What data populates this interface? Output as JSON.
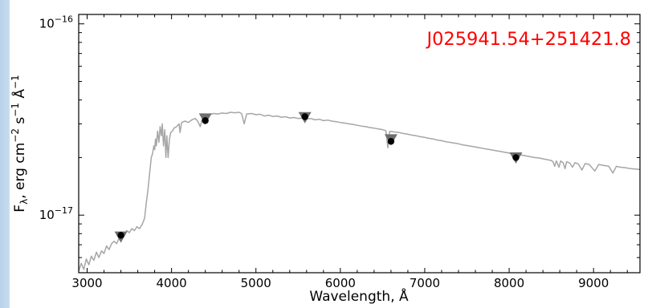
{
  "chart_data": {
    "type": "line",
    "annotation": "J025941.54+251421.8",
    "xlabel": "Wavelength, Å",
    "ylabel_parts": {
      "main": "F",
      "subscript": "λ",
      "units": ", erg cm",
      "exp1": "−2",
      "s": " s",
      "exp2": "−1",
      "angstrom": " Å",
      "exp3": "−1"
    },
    "xlim": [
      2900,
      9550
    ],
    "ylim": [
      5e-18,
      1.12e-16
    ],
    "yscale": "log",
    "x_ticks": [
      3000,
      4000,
      5000,
      6000,
      7000,
      8000,
      9000
    ],
    "x_tick_labels": [
      "3000",
      "4000",
      "5000",
      "6000",
      "7000",
      "8000",
      "9000"
    ],
    "y_major_ticks": [
      {
        "value": 1e-16,
        "mantissa": "10",
        "exponent": "−16"
      },
      {
        "value": 1e-17,
        "mantissa": "10",
        "exponent": "−17"
      }
    ],
    "grid": false,
    "colors": {
      "spectrum": "#a6a6a6",
      "photometry_point": "#000000",
      "model_triangle": "#6e6e6e",
      "annotation": "#ff0000"
    },
    "spectrum": [
      [
        2900,
        5.1e-18
      ],
      [
        2930,
        5.6e-18
      ],
      [
        2960,
        5.2e-18
      ],
      [
        2990,
        5.9e-18
      ],
      [
        3020,
        5.5e-18
      ],
      [
        3050,
        6.1e-18
      ],
      [
        3080,
        5.8e-18
      ],
      [
        3110,
        6.4e-18
      ],
      [
        3140,
        6e-18
      ],
      [
        3170,
        6.5e-18
      ],
      [
        3200,
        6.3e-18
      ],
      [
        3230,
        6.9e-18
      ],
      [
        3260,
        6.6e-18
      ],
      [
        3290,
        7.1e-18
      ],
      [
        3320,
        7.3e-18
      ],
      [
        3350,
        7.1e-18
      ],
      [
        3380,
        7.6e-18
      ],
      [
        3410,
        7.8e-18
      ],
      [
        3440,
        8e-18
      ],
      [
        3470,
        8.3e-18
      ],
      [
        3500,
        8.1e-18
      ],
      [
        3530,
        8.5e-18
      ],
      [
        3560,
        8.3e-18
      ],
      [
        3590,
        8.7e-18
      ],
      [
        3620,
        8.5e-18
      ],
      [
        3650,
        8.9e-18
      ],
      [
        3680,
        9.6e-18
      ],
      [
        3700,
        1.15e-17
      ],
      [
        3720,
        1.35e-17
      ],
      [
        3740,
        1.65e-17
      ],
      [
        3760,
        2e-17
      ],
      [
        3775,
        2.1e-17
      ],
      [
        3790,
        2.3e-17
      ],
      [
        3800,
        2.2e-17
      ],
      [
        3810,
        2.5e-17
      ],
      [
        3820,
        2.3e-17
      ],
      [
        3835,
        2.75e-17
      ],
      [
        3850,
        2.4e-17
      ],
      [
        3865,
        2.9e-17
      ],
      [
        3880,
        2.6e-17
      ],
      [
        3890,
        3e-17
      ],
      [
        3905,
        2.3e-17
      ],
      [
        3920,
        2.8e-17
      ],
      [
        3933,
        2e-17
      ],
      [
        3945,
        2.6e-17
      ],
      [
        3960,
        2e-17
      ],
      [
        3975,
        2.5e-17
      ],
      [
        3990,
        2.7e-17
      ],
      [
        4010,
        2.75e-17
      ],
      [
        4030,
        2.85e-17
      ],
      [
        4060,
        2.9e-17
      ],
      [
        4090,
        3e-17
      ],
      [
        4101,
        2.7e-17
      ],
      [
        4120,
        3.05e-17
      ],
      [
        4160,
        3.1e-17
      ],
      [
        4200,
        3.05e-17
      ],
      [
        4240,
        3.15e-17
      ],
      [
        4280,
        3.2e-17
      ],
      [
        4310,
        3.1e-17
      ],
      [
        4340,
        2.9e-17
      ],
      [
        4370,
        3.25e-17
      ],
      [
        4410,
        3.3e-17
      ],
      [
        4450,
        3.35e-17
      ],
      [
        4500,
        3.4e-17
      ],
      [
        4550,
        3.38e-17
      ],
      [
        4600,
        3.42e-17
      ],
      [
        4650,
        3.4e-17
      ],
      [
        4700,
        3.45e-17
      ],
      [
        4750,
        3.43e-17
      ],
      [
        4800,
        3.45e-17
      ],
      [
        4830,
        3.4e-17
      ],
      [
        4861,
        3e-17
      ],
      [
        4890,
        3.38e-17
      ],
      [
        4950,
        3.4e-17
      ],
      [
        5000,
        3.35e-17
      ],
      [
        5050,
        3.37e-17
      ],
      [
        5100,
        3.3e-17
      ],
      [
        5150,
        3.33e-17
      ],
      [
        5200,
        3.28e-17
      ],
      [
        5250,
        3.3e-17
      ],
      [
        5300,
        3.25e-17
      ],
      [
        5350,
        3.27e-17
      ],
      [
        5400,
        3.22e-17
      ],
      [
        5450,
        3.24e-17
      ],
      [
        5500,
        3.2e-17
      ],
      [
        5550,
        3.22e-17
      ],
      [
        5600,
        3.18e-17
      ],
      [
        5650,
        3.2e-17
      ],
      [
        5700,
        3.15e-17
      ],
      [
        5750,
        3.17e-17
      ],
      [
        5800,
        3.12e-17
      ],
      [
        5850,
        3.14e-17
      ],
      [
        5900,
        3.1e-17
      ],
      [
        5950,
        3.08e-17
      ],
      [
        6000,
        3.05e-17
      ],
      [
        6050,
        3.03e-17
      ],
      [
        6100,
        3e-17
      ],
      [
        6150,
        2.98e-17
      ],
      [
        6200,
        2.95e-17
      ],
      [
        6250,
        2.92e-17
      ],
      [
        6300,
        2.9e-17
      ],
      [
        6350,
        2.87e-17
      ],
      [
        6400,
        2.85e-17
      ],
      [
        6450,
        2.82e-17
      ],
      [
        6500,
        2.8e-17
      ],
      [
        6540,
        2.76e-17
      ],
      [
        6563,
        2.25e-17
      ],
      [
        6585,
        2.74e-17
      ],
      [
        6650,
        2.72e-17
      ],
      [
        6700,
        2.7e-17
      ],
      [
        6750,
        2.67e-17
      ],
      [
        6800,
        2.65e-17
      ],
      [
        6850,
        2.62e-17
      ],
      [
        6900,
        2.6e-17
      ],
      [
        6950,
        2.57e-17
      ],
      [
        7000,
        2.55e-17
      ],
      [
        7050,
        2.52e-17
      ],
      [
        7100,
        2.5e-17
      ],
      [
        7150,
        2.47e-17
      ],
      [
        7200,
        2.45e-17
      ],
      [
        7250,
        2.42e-17
      ],
      [
        7300,
        2.4e-17
      ],
      [
        7350,
        2.38e-17
      ],
      [
        7400,
        2.36e-17
      ],
      [
        7450,
        2.33e-17
      ],
      [
        7500,
        2.31e-17
      ],
      [
        7550,
        2.29e-17
      ],
      [
        7600,
        2.27e-17
      ],
      [
        7650,
        2.25e-17
      ],
      [
        7700,
        2.23e-17
      ],
      [
        7750,
        2.21e-17
      ],
      [
        7800,
        2.19e-17
      ],
      [
        7850,
        2.17e-17
      ],
      [
        7900,
        2.15e-17
      ],
      [
        7950,
        2.13e-17
      ],
      [
        8000,
        2.11e-17
      ],
      [
        8050,
        2.09e-17
      ],
      [
        8100,
        2.07e-17
      ],
      [
        8150,
        2.06e-17
      ],
      [
        8200,
        2.04e-17
      ],
      [
        8250,
        2.02e-17
      ],
      [
        8300,
        2e-17
      ],
      [
        8350,
        1.99e-17
      ],
      [
        8400,
        1.97e-17
      ],
      [
        8450,
        1.95e-17
      ],
      [
        8500,
        1.93e-17
      ],
      [
        8520,
        1.9e-17
      ],
      [
        8540,
        1.8e-17
      ],
      [
        8560,
        1.92e-17
      ],
      [
        8590,
        1.78e-17
      ],
      [
        8610,
        1.92e-17
      ],
      [
        8640,
        1.88e-17
      ],
      [
        8662,
        1.75e-17
      ],
      [
        8680,
        1.9e-17
      ],
      [
        8720,
        1.87e-17
      ],
      [
        8750,
        1.78e-17
      ],
      [
        8780,
        1.88e-17
      ],
      [
        8820,
        1.85e-17
      ],
      [
        8862,
        1.72e-17
      ],
      [
        8900,
        1.86e-17
      ],
      [
        8950,
        1.84e-17
      ],
      [
        9015,
        1.7e-17
      ],
      [
        9060,
        1.84e-17
      ],
      [
        9120,
        1.82e-17
      ],
      [
        9180,
        1.8e-17
      ],
      [
        9229,
        1.66e-17
      ],
      [
        9270,
        1.8e-17
      ],
      [
        9320,
        1.78e-17
      ],
      [
        9380,
        1.77e-17
      ],
      [
        9440,
        1.75e-17
      ],
      [
        9500,
        1.74e-17
      ],
      [
        9550,
        1.73e-17
      ]
    ],
    "photometry_points": [
      {
        "x": 3400,
        "y": 7.85e-18
      },
      {
        "x": 4400,
        "y": 3.12e-17
      },
      {
        "x": 5580,
        "y": 3.27e-17
      },
      {
        "x": 6600,
        "y": 2.43e-17
      },
      {
        "x": 8080,
        "y": 2e-17
      }
    ],
    "model_triangles": [
      {
        "x": 3400,
        "y": 7.6e-18
      },
      {
        "x": 4400,
        "y": 3.15e-17
      },
      {
        "x": 5580,
        "y": 3.2e-17
      },
      {
        "x": 6600,
        "y": 2.45e-17
      },
      {
        "x": 8080,
        "y": 1.97e-17
      }
    ]
  }
}
